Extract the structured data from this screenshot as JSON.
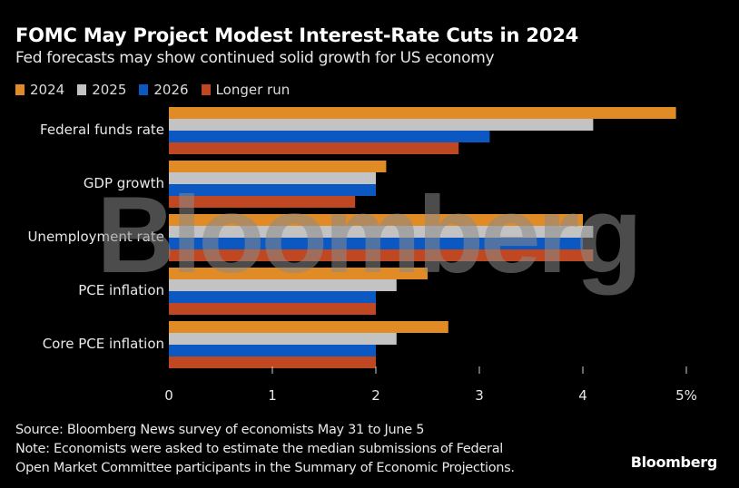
{
  "title": "FOMC May Project Modest Interest-Rate Cuts in 2024",
  "subtitle": "Fed forecasts may show continued solid growth for US economy",
  "watermark": "Bloomberg",
  "footer": {
    "source": "Source: Bloomberg News survey of economists May 31 to June 5",
    "note_line1": "Note: Economists were asked to estimate the median submissions of Federal",
    "note_line2": "Open Market Committee participants in the Summary of Economic Projections.",
    "brand": "Bloomberg"
  },
  "chart_data": {
    "type": "bar",
    "orientation": "horizontal",
    "title": "FOMC May Project Modest Interest-Rate Cuts in 2024",
    "subtitle": "Fed forecasts may show continued solid growth for US economy",
    "xlabel": "",
    "ylabel": "",
    "xlim": [
      0,
      5
    ],
    "ticks": [
      0,
      1,
      2,
      3,
      4,
      5
    ],
    "tick_labels": [
      "0",
      "1",
      "2",
      "3",
      "4",
      "5%"
    ],
    "legend_position": "top-left",
    "grid": false,
    "categories": [
      "Federal funds rate",
      "GDP growth",
      "Unemployment rate",
      "PCE inflation",
      "Core PCE inflation"
    ],
    "series": [
      {
        "name": "2024",
        "color": "#e08b26",
        "values": [
          4.9,
          2.1,
          4.0,
          2.5,
          2.7
        ]
      },
      {
        "name": "2025",
        "color": "#c3c3c3",
        "values": [
          4.1,
          2.0,
          4.1,
          2.2,
          2.2
        ]
      },
      {
        "name": "2026",
        "color": "#0b58c2",
        "values": [
          3.1,
          2.0,
          4.0,
          2.0,
          2.0
        ]
      },
      {
        "name": "Longer run",
        "color": "#bf4722",
        "values": [
          2.8,
          1.8,
          4.1,
          2.0,
          2.0
        ]
      }
    ]
  }
}
